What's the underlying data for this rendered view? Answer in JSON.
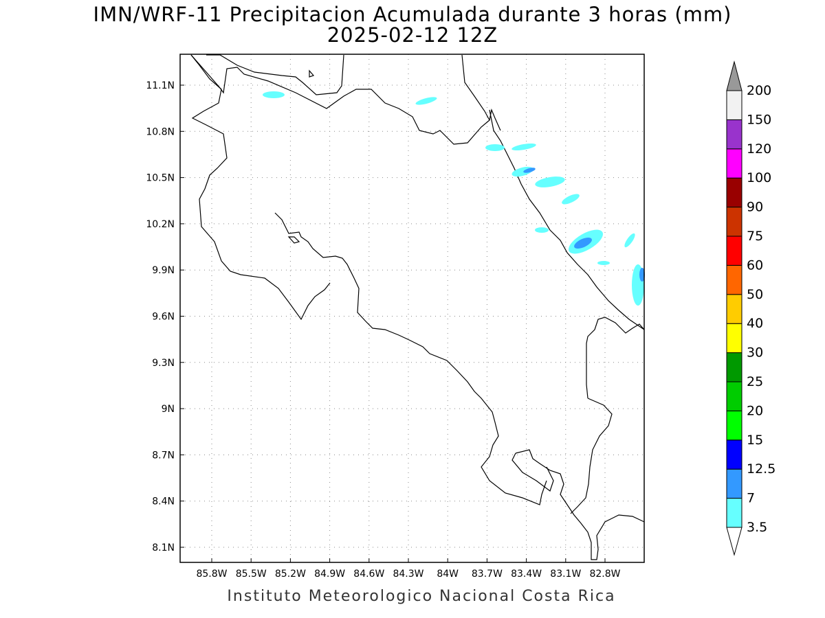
{
  "title": {
    "line1": "IMN/WRF-11 Precipitacion Acumulada durante 3 horas (mm)",
    "line2": "2025-02-12 12Z"
  },
  "footer": "Instituto Meteorologico Nacional Costa Rica",
  "map": {
    "lon_range": [
      -86.0,
      -83.0
    ],
    "lat_range": [
      8.0,
      11.3
    ],
    "lon_ticks": [
      "85.8W",
      "85.5W",
      "85.2W",
      "84.9W",
      "84.6W",
      "84.3W",
      "84W",
      "83.7W",
      "83.4W",
      "83.1W",
      "82.8W"
    ],
    "lat_ticks": [
      "11.1N",
      "10.8N",
      "10.5N",
      "10.2N",
      "9.9N",
      "9.6N",
      "9.3N",
      "9N",
      "8.7N",
      "8.4N",
      "8.1N"
    ],
    "grid": "dotted"
  },
  "colorbar": {
    "levels": [
      "3.5",
      "7",
      "12.5",
      "15",
      "20",
      "25",
      "30",
      "40",
      "50",
      "60",
      "75",
      "90",
      "100",
      "120",
      "150",
      "200"
    ],
    "colors": [
      "#66ffff",
      "#3399ff",
      "#0000ff",
      "#00ff00",
      "#00cc00",
      "#009900",
      "#ffff00",
      "#ffcc00",
      "#ff6600",
      "#ff0000",
      "#cc3300",
      "#990000",
      "#ff00ff",
      "#9933cc",
      "#f2f2f2",
      "#999999"
    ]
  }
}
